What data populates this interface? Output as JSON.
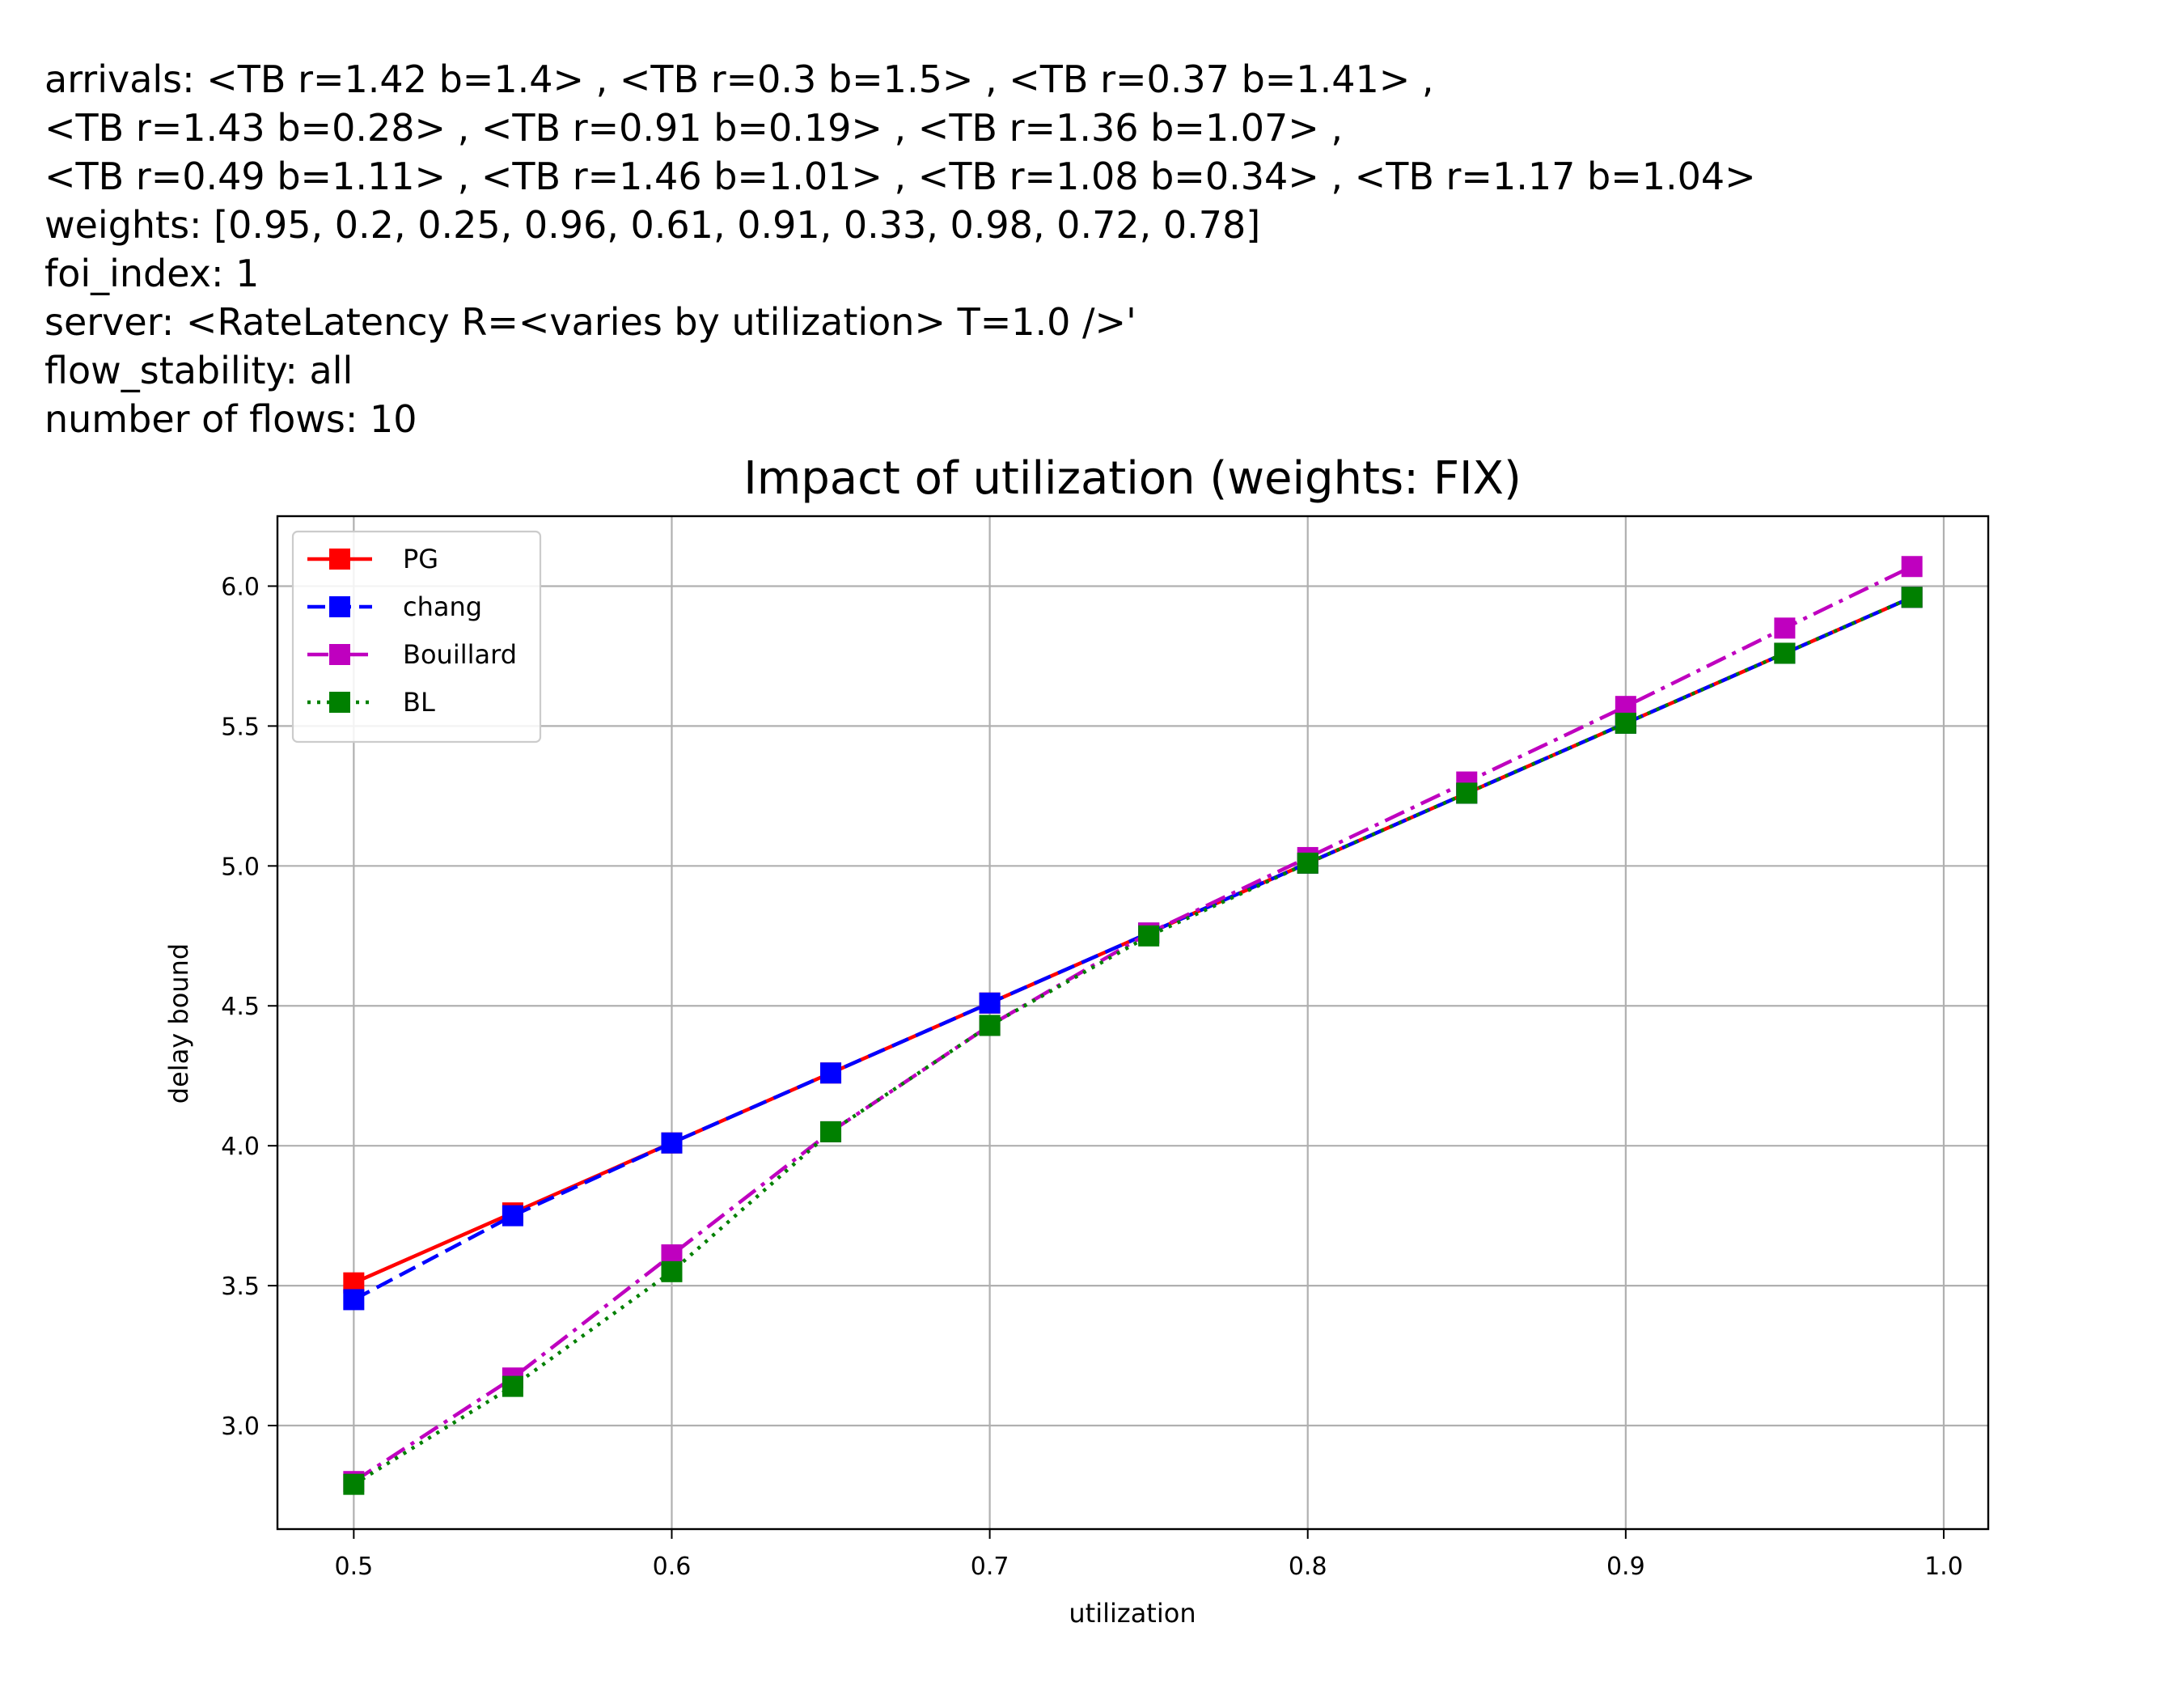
{
  "header": {
    "lines": [
      "arrivals: <TB r=1.42 b=1.4> , <TB r=0.3 b=1.5> , <TB r=0.37 b=1.41> ,",
      "<TB r=1.43 b=0.28> , <TB r=0.91 b=0.19> , <TB r=1.36 b=1.07> ,",
      "<TB r=0.49 b=1.11> , <TB r=1.46 b=1.01> , <TB r=1.08 b=0.34> , <TB r=1.17 b=1.04>",
      "weights: [0.95, 0.2, 0.25, 0.96, 0.61, 0.91, 0.33, 0.98, 0.72, 0.78]",
      "foi_index: 1",
      "server: <RateLatency R=<varies by utilization> T=1.0 />'",
      "flow_stability: all",
      "number of flows: 10"
    ]
  },
  "chart_data": {
    "type": "line",
    "title": "Impact of utilization (weights: FIX)",
    "xlabel": "utilization",
    "ylabel": "delay bound",
    "xlim": [
      0.476,
      1.014
    ],
    "ylim": [
      2.63,
      6.25
    ],
    "grid": true,
    "legend_position": "upper-left",
    "x_ticks": [
      "0.5",
      "0.6",
      "0.7",
      "0.8",
      "0.9",
      "1.0"
    ],
    "y_ticks": [
      "3.0",
      "3.5",
      "4.0",
      "4.5",
      "5.0",
      "5.5",
      "6.0"
    ],
    "x": [
      0.5,
      0.55,
      0.6,
      0.65,
      0.7,
      0.75,
      0.8,
      0.85,
      0.9,
      0.95,
      0.99
    ],
    "series": [
      {
        "name": "PG",
        "color": "#ff0000",
        "dash": "solid",
        "values": [
          3.51,
          3.76,
          4.01,
          4.26,
          4.51,
          4.76,
          5.01,
          5.26,
          5.51,
          5.76,
          5.96
        ]
      },
      {
        "name": "chang",
        "color": "#0000ff",
        "dash": "dashed",
        "values": [
          3.45,
          3.75,
          4.01,
          4.26,
          4.51,
          4.76,
          5.01,
          5.26,
          5.51,
          5.76,
          5.96
        ]
      },
      {
        "name": "Bouillard",
        "color": "#bf00bf",
        "dash": "dashdot",
        "values": [
          2.8,
          3.17,
          3.61,
          4.05,
          4.43,
          4.76,
          5.03,
          5.3,
          5.57,
          5.85,
          6.07
        ]
      },
      {
        "name": "BL",
        "color": "#008000",
        "dash": "dotted",
        "values": [
          2.79,
          3.14,
          3.55,
          4.05,
          4.43,
          4.75,
          5.01,
          5.26,
          5.51,
          5.76,
          5.96
        ]
      }
    ]
  }
}
